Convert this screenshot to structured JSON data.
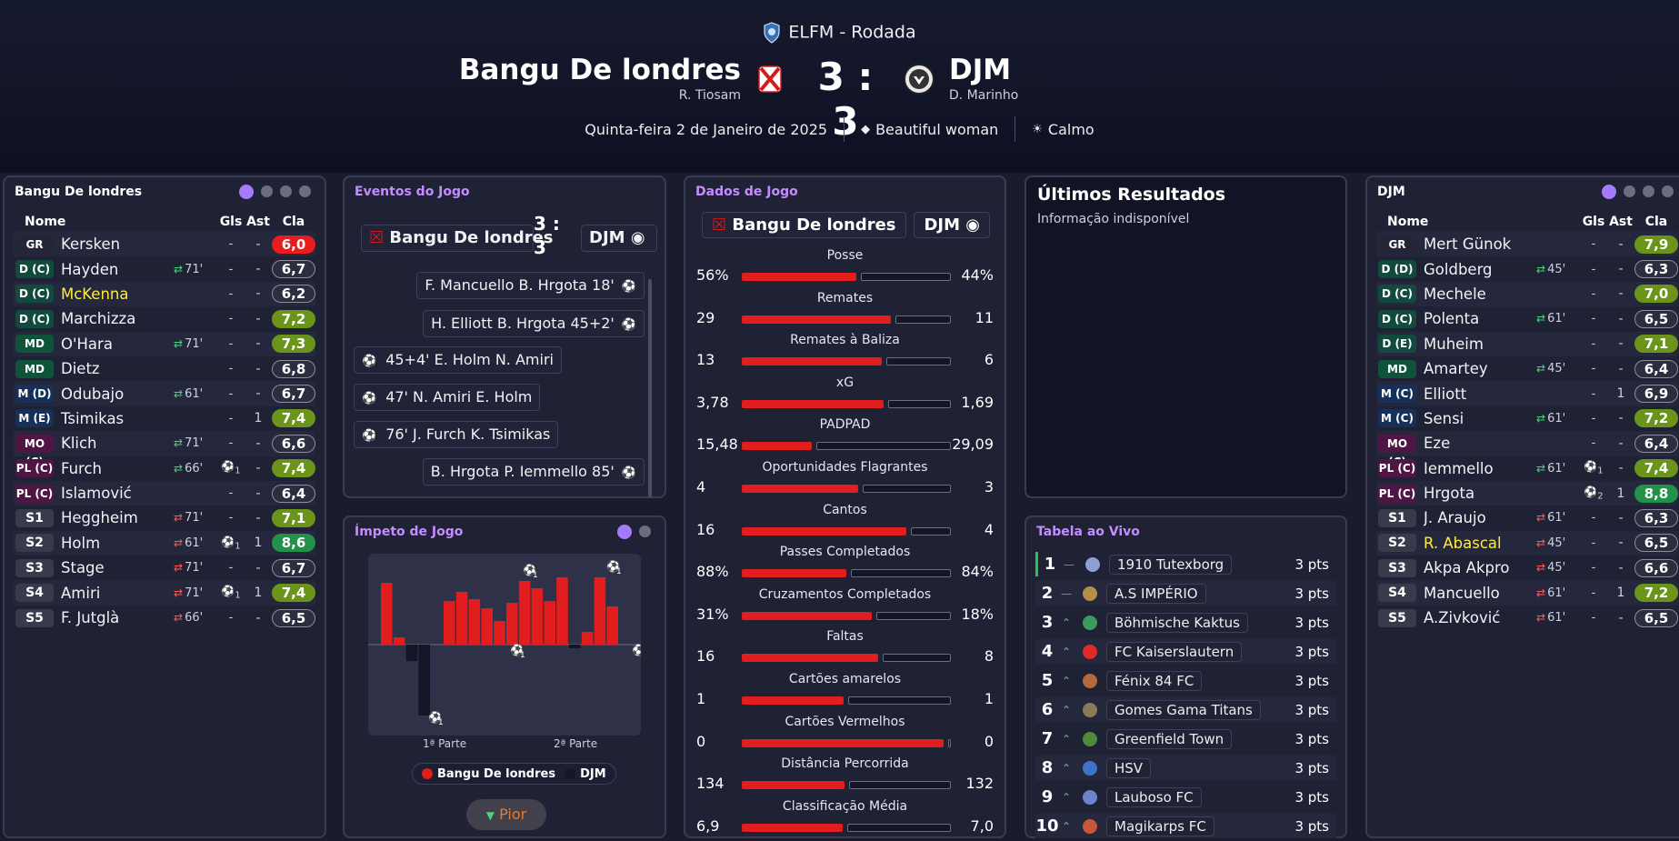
{
  "header": {
    "competition": "ELFM - Rodada",
    "home_team": "Bangu De londres",
    "home_coach": "R. Tiosam",
    "away_team": "DJM",
    "away_coach": "D. Marinho",
    "score": "3 : 3",
    "date": "Quinta-feira 2 de Janeiro de 2025",
    "referee": "Beautiful woman",
    "weather": "Calmo"
  },
  "home_panel": {
    "title": "Bangu De londres",
    "cols": {
      "name": "Nome",
      "gls": "Gls",
      "ast": "Ast",
      "cla": "Cla"
    },
    "players": [
      {
        "pos": "GR",
        "name": "Kersken",
        "sub": "",
        "gls": "-",
        "ast": "-",
        "rating": "6,0"
      },
      {
        "pos": "D (C)",
        "name": "Hayden",
        "sub": "71'",
        "gls": "-",
        "ast": "-",
        "rating": "6,7"
      },
      {
        "pos": "D (C)",
        "name": "McKenna",
        "sub": "",
        "gls": "-",
        "ast": "-",
        "rating": "6,2"
      },
      {
        "pos": "D (C)",
        "name": "Marchizza",
        "sub": "",
        "gls": "-",
        "ast": "-",
        "rating": "7,2"
      },
      {
        "pos": "MD",
        "name": "O'Hara",
        "sub": "71'",
        "gls": "-",
        "ast": "-",
        "rating": "7,3"
      },
      {
        "pos": "MD",
        "name": "Dietz",
        "sub": "",
        "gls": "-",
        "ast": "-",
        "rating": "6,8"
      },
      {
        "pos": "M (D)",
        "name": "Odubajo",
        "sub": "61'",
        "gls": "-",
        "ast": "-",
        "rating": "6,7"
      },
      {
        "pos": "M (E)",
        "name": "Tsimikas",
        "sub": "",
        "gls": "-",
        "ast": "1",
        "rating": "7,4"
      },
      {
        "pos": "MO (C)",
        "name": "Klich",
        "sub": "71'",
        "gls": "-",
        "ast": "-",
        "rating": "6,6"
      },
      {
        "pos": "PL (C)",
        "name": "Furch",
        "sub": "66'",
        "gls": "1",
        "ast": "-",
        "rating": "7,4"
      },
      {
        "pos": "PL (C)",
        "name": "Islamović",
        "sub": "",
        "gls": "-",
        "ast": "-",
        "rating": "6,4"
      },
      {
        "pos": "S1",
        "name": "Heggheim",
        "sub": "71'",
        "gls": "-",
        "ast": "-",
        "rating": "7,1"
      },
      {
        "pos": "S2",
        "name": "Holm",
        "sub": "61'",
        "gls": "1",
        "ast": "1",
        "rating": "8,6"
      },
      {
        "pos": "S3",
        "name": "Stage",
        "sub": "71'",
        "gls": "-",
        "ast": "-",
        "rating": "6,7"
      },
      {
        "pos": "S4",
        "name": "Amiri",
        "sub": "71'",
        "gls": "1",
        "ast": "1",
        "rating": "7,4"
      },
      {
        "pos": "S5",
        "name": "F. Jutglà",
        "sub": "66'",
        "gls": "-",
        "ast": "-",
        "rating": "6,5"
      }
    ]
  },
  "away_panel": {
    "title": "DJM",
    "cols": {
      "name": "Nome",
      "gls": "Gls",
      "ast": "Ast",
      "cla": "Cla"
    },
    "players": [
      {
        "pos": "GR",
        "name": "Mert Günok",
        "sub": "",
        "gls": "-",
        "ast": "-",
        "rating": "7,9"
      },
      {
        "pos": "D (D)",
        "name": "Goldberg",
        "sub": "45'",
        "gls": "-",
        "ast": "-",
        "rating": "6,3"
      },
      {
        "pos": "D (C)",
        "name": "Mechele",
        "sub": "",
        "gls": "-",
        "ast": "-",
        "rating": "7,0"
      },
      {
        "pos": "D (C)",
        "name": "Polenta",
        "sub": "61'",
        "gls": "-",
        "ast": "-",
        "rating": "6,5"
      },
      {
        "pos": "D (E)",
        "name": "Muheim",
        "sub": "",
        "gls": "-",
        "ast": "-",
        "rating": "7,1"
      },
      {
        "pos": "MD",
        "name": "Amartey",
        "sub": "45'",
        "gls": "-",
        "ast": "-",
        "rating": "6,4"
      },
      {
        "pos": "M (C)",
        "name": "Elliott",
        "sub": "",
        "gls": "-",
        "ast": "1",
        "rating": "6,9"
      },
      {
        "pos": "M (C)",
        "name": "Sensi",
        "sub": "61'",
        "gls": "-",
        "ast": "-",
        "rating": "7,2"
      },
      {
        "pos": "MO (C)",
        "name": "Eze",
        "sub": "",
        "gls": "-",
        "ast": "-",
        "rating": "6,4"
      },
      {
        "pos": "PL (C)",
        "name": "Iemmello",
        "sub": "61'",
        "gls": "1",
        "ast": "-",
        "rating": "7,4"
      },
      {
        "pos": "PL (C)",
        "name": "Hrgota",
        "sub": "",
        "gls": "2",
        "ast": "1",
        "rating": "8,8"
      },
      {
        "pos": "S1",
        "name": "J. Araujo",
        "sub": "61'",
        "gls": "-",
        "ast": "-",
        "rating": "6,3"
      },
      {
        "pos": "S2",
        "name": "R. Abascal",
        "sub": "45'",
        "gls": "-",
        "ast": "-",
        "rating": "6,5"
      },
      {
        "pos": "S3",
        "name": "Akpa Akpro",
        "sub": "45'",
        "gls": "-",
        "ast": "-",
        "rating": "6,6"
      },
      {
        "pos": "S4",
        "name": "Mancuello",
        "sub": "61'",
        "gls": "-",
        "ast": "1",
        "rating": "7,2"
      },
      {
        "pos": "S5",
        "name": "A.Zivković",
        "sub": "61'",
        "gls": "-",
        "ast": "-",
        "rating": "6,5"
      }
    ]
  },
  "events": {
    "title": "Eventos do Jogo",
    "home": "Bangu De londres",
    "score": "3 : 3",
    "away": "DJM",
    "items": [
      {
        "side": "away",
        "text": "F. Mancuello B. Hrgota 18'"
      },
      {
        "side": "away",
        "text": "H. Elliott B. Hrgota 45+2'"
      },
      {
        "side": "home",
        "text": "45+4' E. Holm N. Amiri"
      },
      {
        "side": "home",
        "text": "47' N. Amiri E. Holm"
      },
      {
        "side": "home",
        "text": "76' J. Furch K. Tsimikas"
      },
      {
        "side": "away",
        "text": "B. Hrgota P. Iemmello 85'"
      }
    ]
  },
  "momentum": {
    "title": "Ímpeto de Jogo",
    "half1": "1ª Parte",
    "half2": "2ª Parte",
    "legend_home": "Bangu De londres",
    "legend_away": "DJM",
    "button": "Pior",
    "goal_count": "1"
  },
  "stats": {
    "title": "Dados de Jogo",
    "home": "Bangu De londres",
    "away": "DJM",
    "rows": [
      {
        "label": "Posse",
        "home": "56%",
        "away": "44%"
      },
      {
        "label": "Remates",
        "home": "29",
        "away": "11"
      },
      {
        "label": "Remates à Baliza",
        "home": "13",
        "away": "6"
      },
      {
        "label": "xG",
        "home": "3,78",
        "away": "1,69"
      },
      {
        "label": "PADPAD",
        "home": "15,48",
        "away": "29,09"
      },
      {
        "label": "Oportunidades Flagrantes",
        "home": "4",
        "away": "3"
      },
      {
        "label": "Cantos",
        "home": "16",
        "away": "4"
      },
      {
        "label": "Passes Completados",
        "home": "88%",
        "away": "84%"
      },
      {
        "label": "Cruzamentos Completados",
        "home": "31%",
        "away": "18%"
      },
      {
        "label": "Faltas",
        "home": "16",
        "away": "8"
      },
      {
        "label": "Cartões amarelos",
        "home": "1",
        "away": "1"
      },
      {
        "label": "Cartões Vermelhos",
        "home": "0",
        "away": "0"
      },
      {
        "label": "Distância Percorrida",
        "home": "134",
        "away": "132"
      },
      {
        "label": "Classificação Média",
        "home": "6,9",
        "away": "7,0"
      }
    ]
  },
  "results": {
    "title": "Últimos Resultados",
    "text": "Informação indisponível"
  },
  "table": {
    "title": "Tabela ao Vivo",
    "rows": [
      {
        "pos": "1",
        "move": "—",
        "team": "1910 Tutexborg",
        "pts": "3 pts"
      },
      {
        "pos": "2",
        "move": "—",
        "team": "A.S IMPÉRIO",
        "pts": "3 pts"
      },
      {
        "pos": "3",
        "move": "^",
        "team": "Böhmische Kaktus",
        "pts": "3 pts"
      },
      {
        "pos": "4",
        "move": "^",
        "team": "FC Kaiserslautern",
        "pts": "3 pts"
      },
      {
        "pos": "5",
        "move": "^",
        "team": "Fénix 84 FC",
        "pts": "3 pts"
      },
      {
        "pos": "6",
        "move": "^",
        "team": "Gomes Gama Titans",
        "pts": "3 pts"
      },
      {
        "pos": "7",
        "move": "^",
        "team": "Greenfield Town",
        "pts": "3 pts"
      },
      {
        "pos": "8",
        "move": "^",
        "team": "HSV",
        "pts": "3 pts"
      },
      {
        "pos": "9",
        "move": "^",
        "team": "Lauboso FC",
        "pts": "3 pts"
      },
      {
        "pos": "10",
        "move": "^",
        "team": "Magikarps FC",
        "pts": "3 pts"
      }
    ]
  },
  "colors": {
    "home": "#e21d1d",
    "away": "#141627",
    "accent": "#a47aff"
  }
}
